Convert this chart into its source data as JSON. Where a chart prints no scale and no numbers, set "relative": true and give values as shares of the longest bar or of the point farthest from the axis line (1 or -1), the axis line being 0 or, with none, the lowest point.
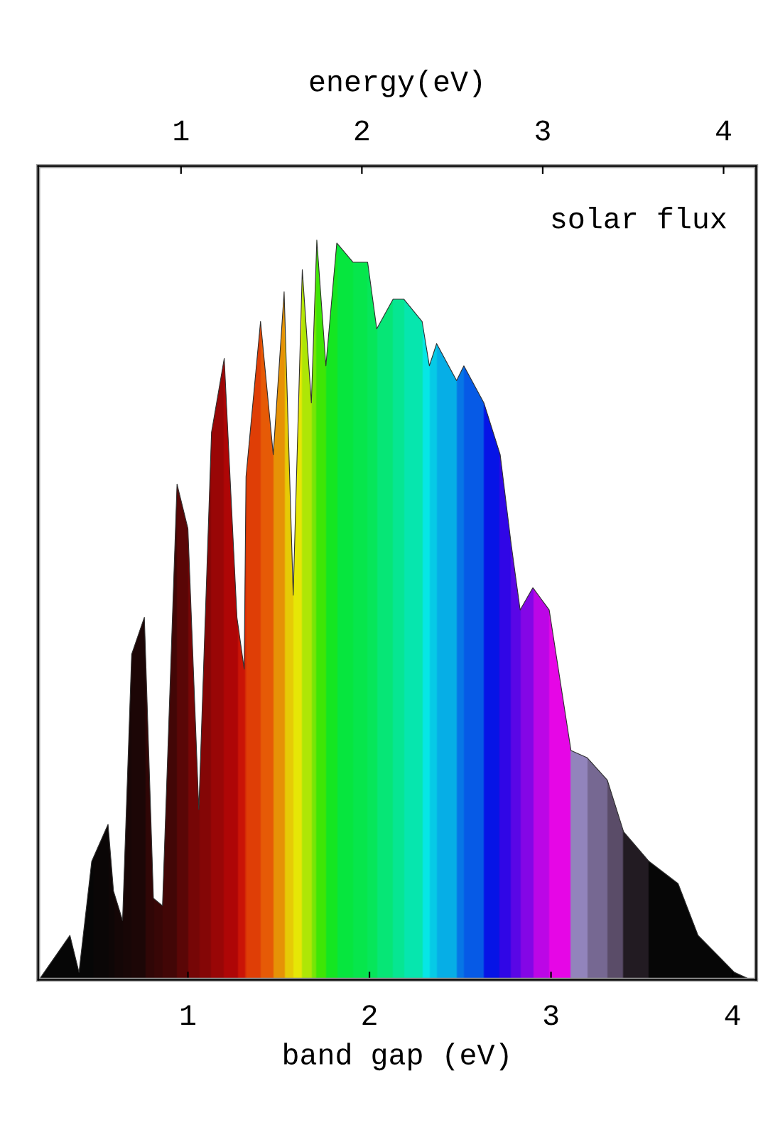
{
  "chart_data": {
    "type": "area",
    "relative": true,
    "xlabel": "band gap (eV)",
    "x2label": "energy(eV)",
    "annotations": [
      "solar flux"
    ],
    "xlim": [
      0.175,
      4.13
    ],
    "xticks": [
      1,
      2,
      3,
      4
    ],
    "x2lim": [
      0.21,
      4.18
    ],
    "x2ticks": [
      1,
      2,
      3,
      4
    ],
    "tick_labels": "x",
    "grid": false,
    "legend": false,
    "series": [
      {
        "color": "#303030",
        "x": [
          0.18,
          0.35,
          0.4,
          0.47,
          0.56,
          0.59,
          0.64,
          0.69,
          0.76,
          0.81,
          0.86,
          0.94,
          1.0,
          1.06,
          1.13,
          1.2,
          1.27,
          1.31,
          1.32,
          1.4,
          1.47,
          1.53,
          1.58,
          1.63,
          1.68,
          1.71,
          1.76,
          1.82,
          1.91,
          1.99,
          2.04,
          2.13,
          2.19,
          2.29,
          2.33,
          2.37,
          2.48,
          2.52,
          2.63,
          2.72,
          2.78,
          2.83,
          2.9,
          2.99,
          3.11,
          3.2,
          3.31,
          3.4,
          3.54,
          3.7,
          3.81,
          4.01,
          4.1
        ],
        "values": [
          0,
          0.06,
          0.01,
          0.16,
          0.21,
          0.12,
          0.08,
          0.44,
          0.49,
          0.11,
          0.1,
          0.67,
          0.61,
          0.23,
          0.74,
          0.84,
          0.49,
          0.42,
          0.68,
          0.89,
          0.71,
          0.93,
          0.52,
          0.96,
          0.78,
          1.0,
          0.83,
          0.996,
          0.97,
          0.97,
          0.88,
          0.92,
          0.92,
          0.89,
          0.83,
          0.86,
          0.81,
          0.83,
          0.78,
          0.71,
          0.59,
          0.5,
          0.53,
          0.5,
          0.31,
          0.3,
          0.27,
          0.2,
          0.16,
          0.13,
          0.06,
          0.01,
          0
        ],
        "colors": [
          "#000000",
          "#000000",
          "#000000",
          "#050000",
          "#0a0000",
          "#100000",
          "#150000",
          "#1a0000",
          "#300000",
          "#3a0000",
          "#450000",
          "#600000",
          "#800000",
          "#900000",
          "#a80000",
          "#c00000",
          "#e01000",
          "#f03000",
          "#f84000",
          "#ff6000",
          "#ffa000",
          "#ffe000",
          "#ffff00",
          "#c0ff00",
          "#80ff00",
          "#40ff00",
          "#10ff20",
          "#00ff40",
          "#00ff50",
          "#00ff60",
          "#00ff80",
          "#00ffa0",
          "#00ffc0",
          "#00ffff",
          "#00e0ff",
          "#00c0ff",
          "#0080ff",
          "#0060ff",
          "#0010ff",
          "#3000ff",
          "#6000ff",
          "#9000ff",
          "#d000ff",
          "#ff00ff",
          "#a090d0",
          "#8070a0",
          "#605070",
          "#201820",
          "#000000",
          "#000000",
          "#000000",
          "#000000",
          "#000000"
        ]
      }
    ]
  }
}
